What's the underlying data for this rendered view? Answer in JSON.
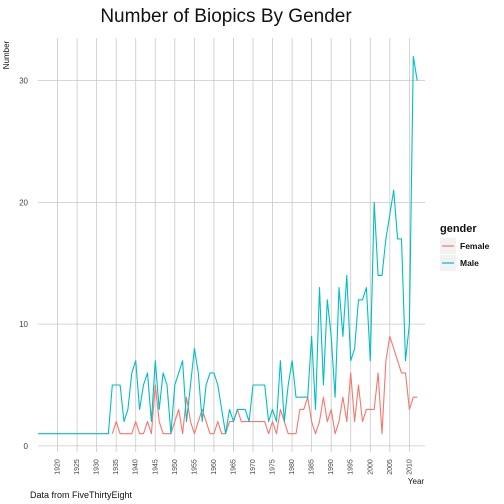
{
  "chart_data": {
    "type": "line",
    "title": "Number of Biopics By Gender",
    "xlabel": "Year",
    "ylabel": "Number",
    "caption": "Data from FiveThirtyEight",
    "xlim": [
      1915,
      2014
    ],
    "ylim": [
      -0.5,
      33.5
    ],
    "x_ticks": [
      1920,
      1925,
      1930,
      1935,
      1940,
      1945,
      1950,
      1955,
      1960,
      1965,
      1970,
      1975,
      1980,
      1985,
      1990,
      1995,
      2000,
      2005,
      2010
    ],
    "y_ticks": [
      0,
      10,
      20,
      30
    ],
    "grid": true,
    "legend": {
      "title": "gender",
      "position": "right"
    },
    "series": [
      {
        "name": "Female",
        "color": "#F8766D",
        "x": [
          1934,
          1935,
          1936,
          1937,
          1938,
          1939,
          1940,
          1941,
          1942,
          1943,
          1944,
          1945,
          1946,
          1947,
          1948,
          1949,
          1950,
          1951,
          1952,
          1953,
          1954,
          1955,
          1956,
          1957,
          1958,
          1959,
          1960,
          1961,
          1962,
          1963,
          1964,
          1965,
          1966,
          1967,
          1968,
          1969,
          1970,
          1971,
          1972,
          1973,
          1974,
          1975,
          1976,
          1977,
          1978,
          1979,
          1980,
          1981,
          1982,
          1983,
          1984,
          1985,
          1986,
          1987,
          1988,
          1989,
          1990,
          1991,
          1992,
          1993,
          1994,
          1995,
          1996,
          1997,
          1998,
          1999,
          2000,
          2001,
          2002,
          2003,
          2004,
          2005,
          2006,
          2007,
          2008,
          2009,
          2010,
          2011,
          2012
        ],
        "y": [
          1,
          2,
          1,
          1,
          1,
          1,
          2,
          1,
          1,
          2,
          1,
          5,
          2,
          1,
          1,
          1,
          2,
          3,
          1,
          4,
          2,
          1,
          2,
          3,
          2,
          1,
          1,
          2,
          1,
          1,
          2,
          2,
          3,
          2,
          2,
          2,
          2,
          2,
          2,
          2,
          1,
          2,
          1,
          3,
          2,
          1,
          1,
          1,
          3,
          3,
          4,
          2,
          1,
          2,
          4,
          2,
          3,
          1,
          2,
          4,
          2,
          6,
          2,
          5,
          2,
          3,
          3,
          3,
          6,
          1,
          7,
          9,
          8,
          7,
          6,
          6,
          3,
          4,
          4
        ]
      },
      {
        "name": "Male",
        "color": "#00BFC4",
        "x": [
          1915,
          1916,
          1917,
          1918,
          1919,
          1920,
          1921,
          1922,
          1923,
          1924,
          1925,
          1926,
          1927,
          1928,
          1929,
          1930,
          1931,
          1932,
          1933,
          1934,
          1935,
          1936,
          1937,
          1938,
          1939,
          1940,
          1941,
          1942,
          1943,
          1944,
          1945,
          1946,
          1947,
          1948,
          1949,
          1950,
          1951,
          1952,
          1953,
          1954,
          1955,
          1956,
          1957,
          1958,
          1959,
          1960,
          1961,
          1962,
          1963,
          1964,
          1965,
          1966,
          1967,
          1968,
          1969,
          1970,
          1971,
          1972,
          1973,
          1974,
          1975,
          1976,
          1977,
          1978,
          1979,
          1980,
          1981,
          1982,
          1983,
          1984,
          1985,
          1986,
          1987,
          1988,
          1989,
          1990,
          1991,
          1992,
          1993,
          1994,
          1995,
          1996,
          1997,
          1998,
          1999,
          2000,
          2001,
          2002,
          2003,
          2004,
          2005,
          2006,
          2007,
          2008,
          2009,
          2010,
          2011,
          2012
        ],
        "y": [
          1,
          1,
          1,
          1,
          1,
          1,
          1,
          1,
          1,
          1,
          1,
          1,
          1,
          1,
          1,
          1,
          1,
          1,
          1,
          5,
          5,
          5,
          2,
          3,
          6,
          7,
          3,
          5,
          6,
          2,
          7,
          3,
          6,
          5,
          1,
          5,
          6,
          7,
          2,
          5,
          8,
          6,
          2,
          5,
          6,
          6,
          5,
          3,
          1,
          3,
          2,
          3,
          3,
          3,
          2,
          5,
          5,
          5,
          5,
          2,
          3,
          2,
          7,
          2,
          5,
          7,
          4,
          4,
          4,
          4,
          9,
          3,
          13,
          5,
          12,
          9,
          4,
          13,
          9,
          14,
          7,
          8,
          12,
          12,
          13,
          7,
          20,
          14,
          14,
          17,
          19,
          21,
          17,
          17,
          7,
          10,
          32,
          30
        ]
      }
    ]
  }
}
